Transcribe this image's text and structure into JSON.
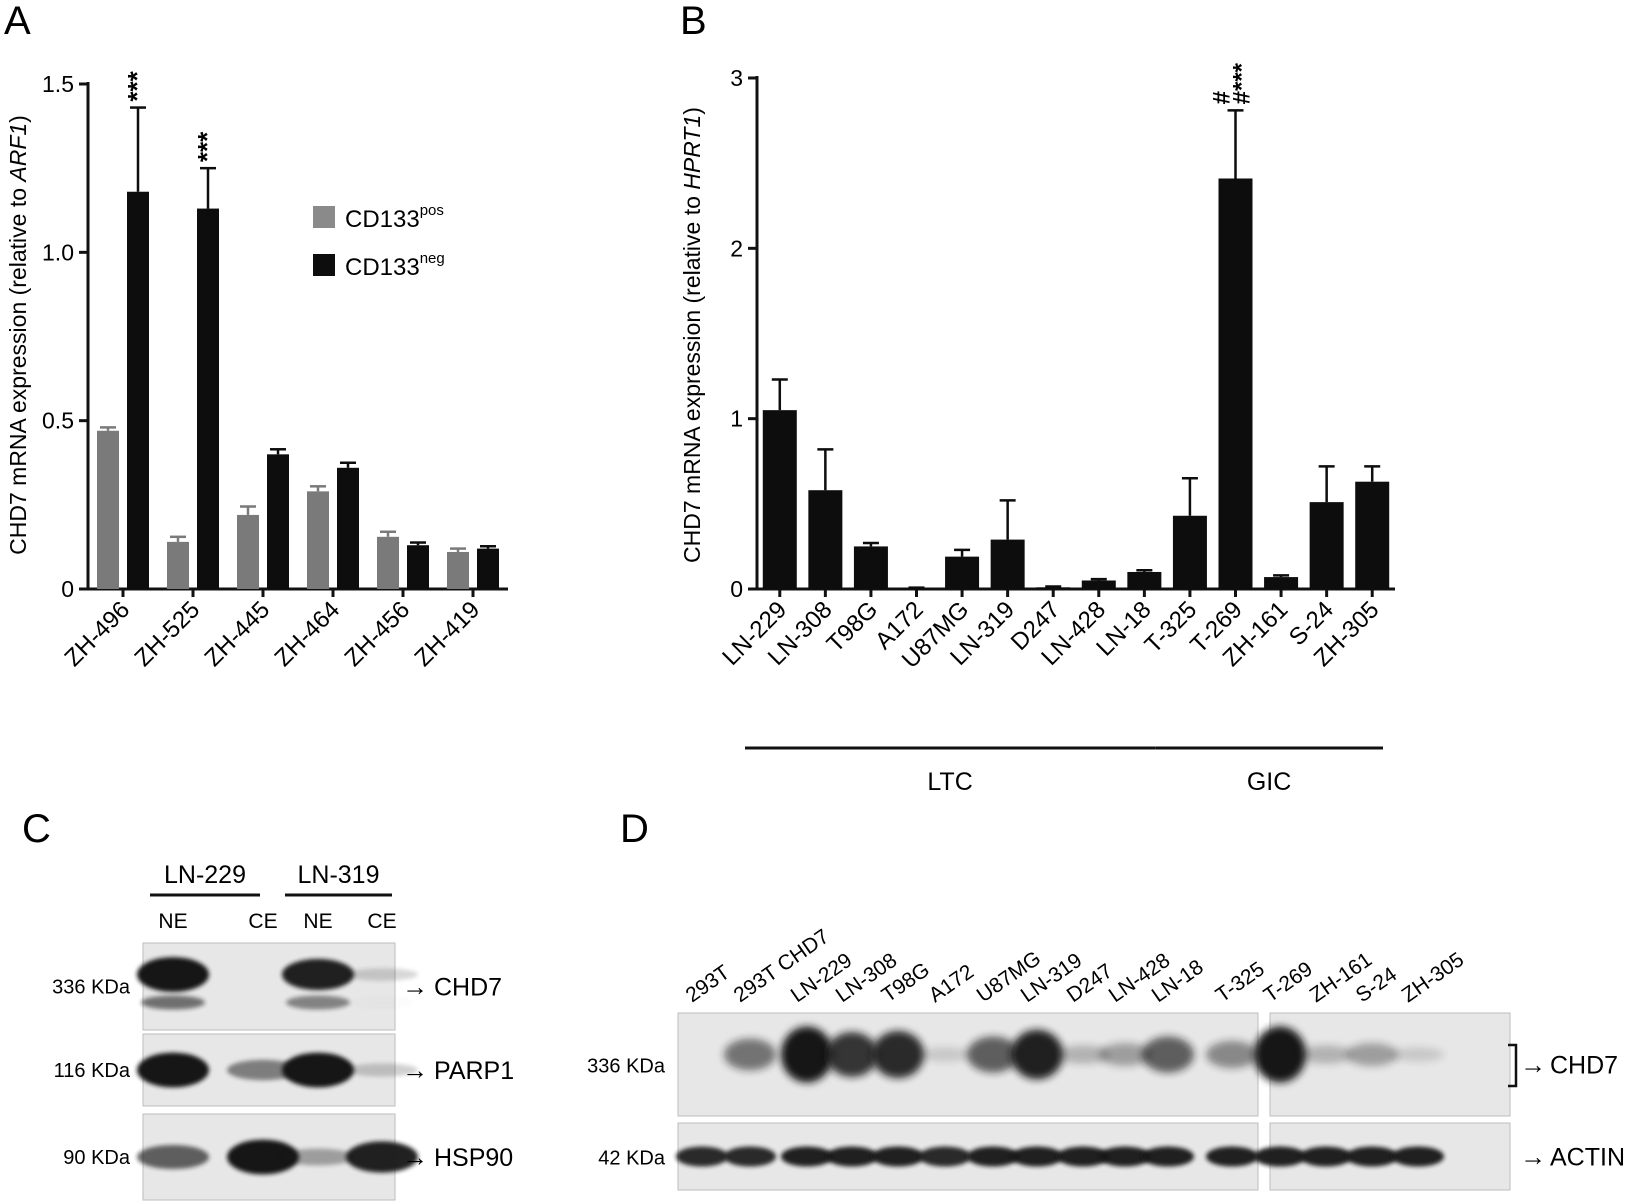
{
  "panels": {
    "a": "A",
    "b": "B",
    "c": "C",
    "d": "D"
  },
  "colors": {
    "cd133_pos": "#7a7a7a",
    "cd133_neg": "#0d0d0d",
    "bar": "#0d0d0d",
    "blot_bg": "#e7e7e7",
    "band": "#141414"
  },
  "chart_data": [
    {
      "panel": "A",
      "type": "bar",
      "ylabel_prefix": "CHD7 mRNA expression (relative to ",
      "ylabel_italic": "ARF1",
      "ylabel_suffix": ")",
      "ylim": [
        0,
        1.5
      ],
      "yticks": [
        0,
        0.5,
        1.0,
        1.5
      ],
      "ytick_labels": [
        "0",
        "0.5",
        "1.0",
        "1.5"
      ],
      "categories": [
        "ZH-496",
        "ZH-525",
        "ZH-445",
        "ZH-464",
        "ZH-456",
        "ZH-419"
      ],
      "series": [
        {
          "name": "CD133",
          "sup": "pos",
          "values": [
            0.47,
            0.14,
            0.22,
            0.29,
            0.155,
            0.11
          ],
          "errors": [
            0.01,
            0.015,
            0.025,
            0.015,
            0.015,
            0.01
          ]
        },
        {
          "name": "CD133",
          "sup": "neg",
          "values": [
            1.18,
            1.13,
            0.4,
            0.36,
            0.13,
            0.12
          ],
          "errors": [
            0.25,
            0.12,
            0.015,
            0.015,
            0.008,
            0.007
          ]
        }
      ],
      "annotations": [
        {
          "category": "ZH-496",
          "series": 1,
          "text": "***"
        },
        {
          "category": "ZH-525",
          "series": 1,
          "text": "***"
        }
      ],
      "legend": "top-right"
    },
    {
      "panel": "B",
      "type": "bar",
      "ylabel_prefix": "CHD7 mRNA expression (relative to ",
      "ylabel_italic": "HPRT1",
      "ylabel_suffix": ")",
      "ylim": [
        0,
        3
      ],
      "yticks": [
        0,
        1,
        2,
        3
      ],
      "ytick_labels": [
        "0",
        "1",
        "2",
        "3"
      ],
      "categories": [
        "LN-229",
        "LN-308",
        "T98G",
        "A172",
        "U87MG",
        "LN-319",
        "D247",
        "LN-428",
        "LN-18",
        "T-325",
        "T-269",
        "ZH-161",
        "S-24",
        "ZH-305"
      ],
      "values": [
        1.05,
        0.58,
        0.25,
        0.005,
        0.19,
        0.29,
        0.01,
        0.05,
        0.1,
        0.43,
        2.41,
        0.07,
        0.51,
        0.63
      ],
      "errors": [
        0.18,
        0.24,
        0.02,
        0.003,
        0.04,
        0.23,
        0.005,
        0.008,
        0.01,
        0.22,
        0.4,
        0.01,
        0.21,
        0.09
      ],
      "annotations": [
        {
          "category": "T-269",
          "lines": [
            "#",
            "#***"
          ]
        }
      ],
      "groups": [
        {
          "label": "LTC",
          "from": "LN-229",
          "to": "LN-18"
        },
        {
          "label": "GIC",
          "from": "T-325",
          "to": "ZH-305"
        }
      ]
    }
  ],
  "blot_c": {
    "groups": [
      "LN-229",
      "LN-319"
    ],
    "lanes": [
      "NE",
      "CE",
      "NE",
      "CE"
    ],
    "rows": [
      {
        "kda": "336 KDa",
        "protein": "CHD7",
        "bands": [
          0.95,
          0,
          0.8,
          0.02
        ]
      },
      {
        "kda": "116 KDa",
        "protein": "PARP1",
        "bands": [
          0.95,
          0.35,
          0.95,
          0.05
        ]
      },
      {
        "kda": "90 KDa",
        "protein": "HSP90",
        "bands": [
          0.5,
          0.95,
          0.2,
          0.8
        ]
      }
    ],
    "arrow": "→"
  },
  "blot_d": {
    "lanes": [
      "293T",
      "293T CHD7",
      "LN-229",
      "LN-308",
      "T98G",
      "A172",
      "U87MG",
      "LN-319",
      "D247",
      "LN-428",
      "LN-18",
      "T-325",
      "T-269",
      "ZH-161",
      "S-24",
      "ZH-305"
    ],
    "rows": [
      {
        "kda": "336 KDa",
        "protein": "CHD7",
        "bands": [
          0,
          0.45,
          1,
          0.75,
          0.8,
          0.05,
          0.55,
          0.85,
          0.15,
          0.25,
          0.55,
          0.35,
          1,
          0.15,
          0.25,
          0.05
        ]
      },
      {
        "kda": "42 KDa",
        "protein": "ACTIN",
        "bands": [
          0.9,
          0.9,
          0.95,
          0.95,
          0.95,
          0.9,
          0.95,
          0.95,
          0.95,
          0.95,
          0.95,
          0.95,
          0.95,
          0.95,
          0.95,
          0.95
        ]
      }
    ],
    "arrow": "→"
  }
}
